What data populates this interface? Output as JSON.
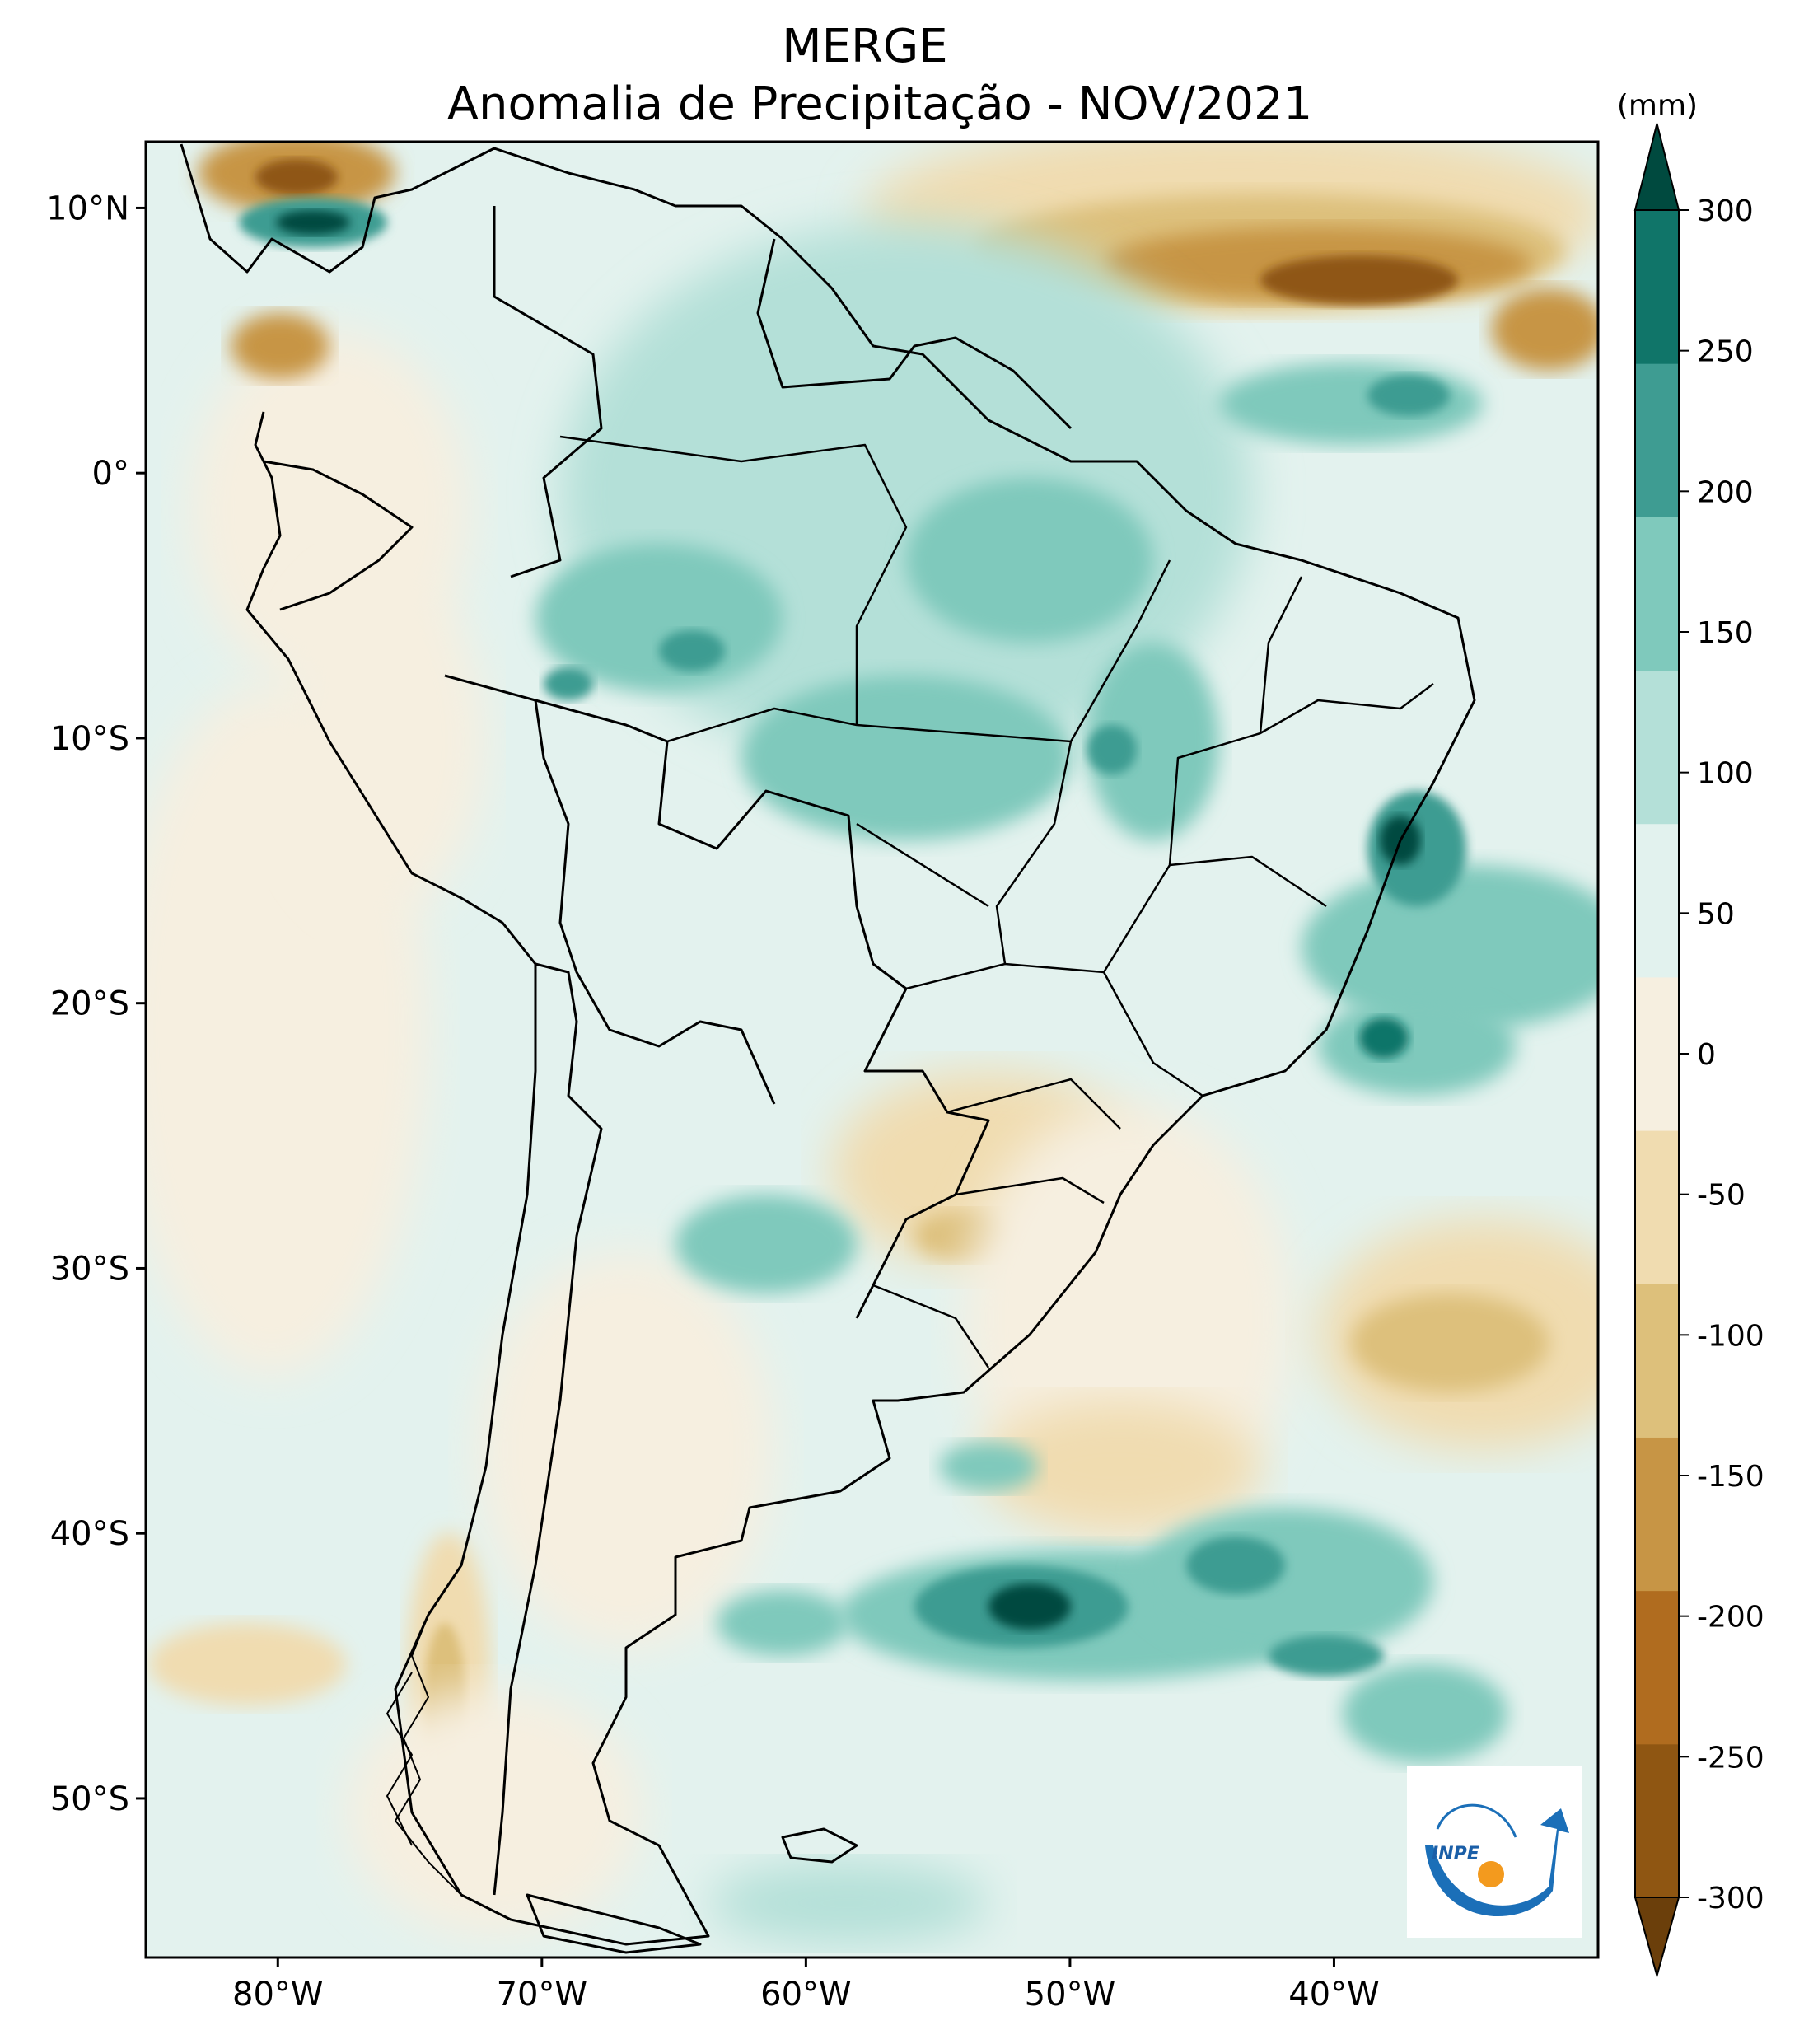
{
  "title": {
    "line1": "MERGE",
    "line2": "Anomalia de Precipitação - NOV/2021"
  },
  "map": {
    "lat_range": [
      -56,
      12.5
    ],
    "lon_range": [
      -85,
      -30
    ],
    "lat_ticks": [
      {
        "value": 10,
        "label": "10°N"
      },
      {
        "value": 0,
        "label": "0°"
      },
      {
        "value": -10,
        "label": "10°S"
      },
      {
        "value": -20,
        "label": "20°S"
      },
      {
        "value": -30,
        "label": "30°S"
      },
      {
        "value": -40,
        "label": "40°S"
      },
      {
        "value": -50,
        "label": "50°S"
      }
    ],
    "lon_ticks": [
      {
        "value": -80,
        "label": "80°W"
      },
      {
        "value": -70,
        "label": "70°W"
      },
      {
        "value": -60,
        "label": "60°W"
      },
      {
        "value": -50,
        "label": "50°W"
      },
      {
        "value": -40,
        "label": "40°W"
      }
    ]
  },
  "colorbar": {
    "unit": "(mm)",
    "levels": [
      -300,
      -250,
      -200,
      -150,
      -100,
      -50,
      0,
      50,
      100,
      150,
      200,
      250,
      300
    ],
    "labels": [
      "300",
      "250",
      "200",
      "150",
      "100",
      "50",
      "0",
      "-50",
      "-100",
      "-150",
      "-200",
      "-250",
      "-300"
    ],
    "colors": [
      "#6b3f0b",
      "#8f5612",
      "#b06c1f",
      "#c79545",
      "#ddc07b",
      "#f0dcb0",
      "#f6efe0",
      "#e2f2ee",
      "#b4e0d8",
      "#7fc9bc",
      "#3e9c92",
      "#107569",
      "#004a3f"
    ]
  },
  "logo": {
    "text": "INPE"
  }
}
